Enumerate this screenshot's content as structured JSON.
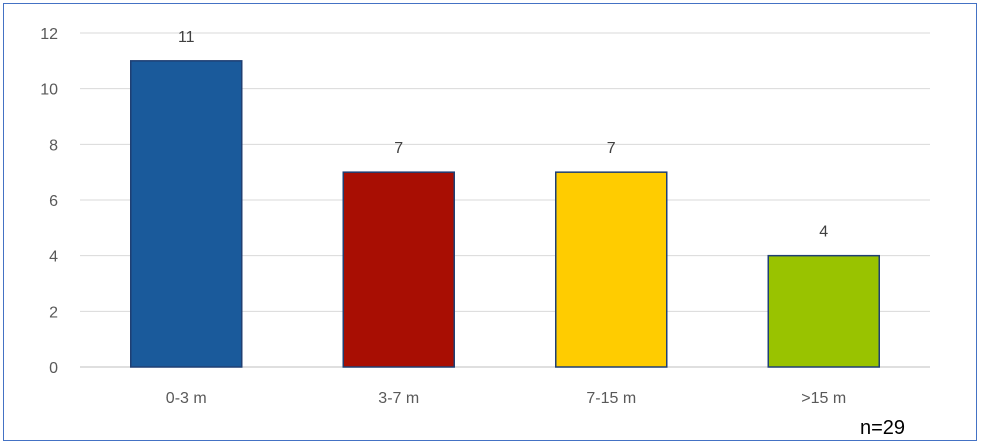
{
  "chart_data": {
    "type": "bar",
    "categories": [
      "0-3 m",
      "3-7 m",
      "7-15 m",
      ">15 m"
    ],
    "values": [
      11,
      7,
      7,
      4
    ],
    "colors": [
      "#1A5A9B",
      "#A80E03",
      "#FFCC00",
      "#99C300"
    ],
    "bar_border_color": "#1F3F73",
    "ylim": [
      0,
      12
    ],
    "yticks": [
      0,
      2,
      4,
      6,
      8,
      10,
      12
    ],
    "grid": true,
    "title": "",
    "xlabel": "",
    "ylabel": "",
    "data_labels": true
  },
  "note": "n=29"
}
